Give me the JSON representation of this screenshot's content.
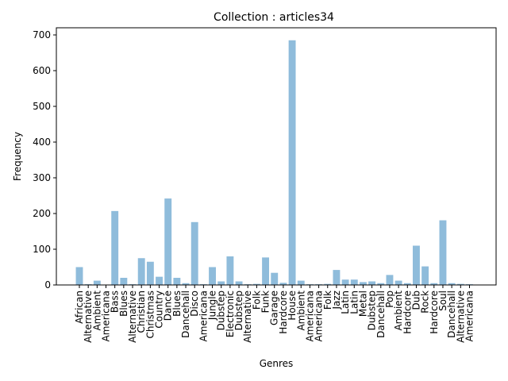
{
  "chart_data": {
    "type": "bar",
    "title": "Collection : articles34",
    "xlabel": "Genres",
    "ylabel": "Frequency",
    "ylim": [
      0,
      720
    ],
    "yticks": [
      0,
      100,
      200,
      300,
      400,
      500,
      600,
      700
    ],
    "grid": false,
    "bar_color": "#8fbcdb",
    "categories": [
      "African",
      "Alternative",
      "Ambient",
      "Americana",
      "Bass",
      "Blues",
      "Alternative",
      "Christian",
      "Christmas",
      "Country",
      "Dance",
      "Blues",
      "Dancehall",
      "Disco",
      "Americana",
      "Jungle",
      "Dubstep",
      "Electronic",
      "Dubstep",
      "Alternative",
      "Folk",
      "Funk",
      "Garage",
      "Hardcore",
      "House",
      "Ambient",
      "Americana",
      "Americana",
      "Folk",
      "Jazz",
      "Latin",
      "Latin",
      "Metal",
      "Dubstep",
      "Dancehall",
      "Pop",
      "Ambient",
      "Hardcore",
      "Dub",
      "Rock",
      "Hardcore",
      "Soul",
      "Dancehall",
      "Alternative",
      "Americana"
    ],
    "values": [
      50,
      2,
      12,
      1,
      207,
      20,
      2,
      75,
      65,
      23,
      242,
      20,
      5,
      176,
      2,
      50,
      10,
      80,
      10,
      2,
      3,
      77,
      34,
      6,
      685,
      12,
      2,
      2,
      3,
      42,
      15,
      15,
      8,
      10,
      5,
      28,
      12,
      5,
      110,
      52,
      5,
      181,
      5,
      3,
      2
    ]
  }
}
